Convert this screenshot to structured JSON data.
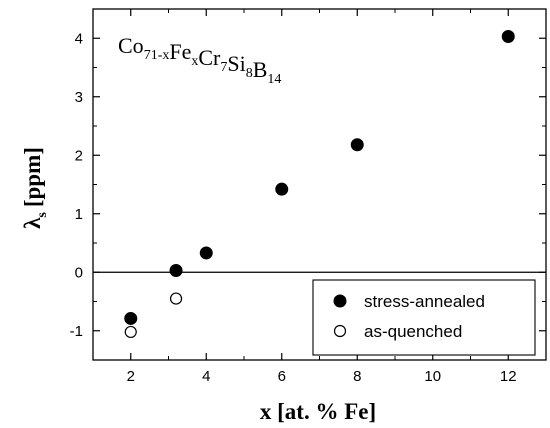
{
  "chart_data": {
    "type": "scatter",
    "title": "",
    "annotation": {
      "parts": [
        {
          "text": "Co",
          "sub": "71-x"
        },
        {
          "text": "Fe",
          "sub": "x"
        },
        {
          "text": "Cr",
          "sub": "7"
        },
        {
          "text": "Si",
          "sub": "8"
        },
        {
          "text": "B",
          "sub": "14"
        }
      ]
    },
    "xlabel": "x [at. % Fe]",
    "ylabel": {
      "main": "λ",
      "sub": "s",
      "unit": "[ppm]"
    },
    "xlim": [
      1.0,
      13.0
    ],
    "ylim": [
      -1.5,
      4.5
    ],
    "xticks": [
      2,
      4,
      6,
      8,
      10,
      12
    ],
    "yticks": [
      -1,
      0,
      1,
      2,
      3,
      4
    ],
    "zero_line": true,
    "grid": false,
    "legend_position": "bottom-right",
    "series": [
      {
        "name": "stress-annealed",
        "marker": "filled-circle",
        "points": [
          [
            2,
            -0.79
          ],
          [
            3.2,
            0.03
          ],
          [
            4,
            0.33
          ],
          [
            6,
            1.42
          ],
          [
            8,
            2.18
          ],
          [
            12,
            4.03
          ]
        ]
      },
      {
        "name": "as-quenched",
        "marker": "open-circle",
        "points": [
          [
            2,
            -1.02
          ],
          [
            3.2,
            -0.45
          ]
        ]
      }
    ]
  }
}
